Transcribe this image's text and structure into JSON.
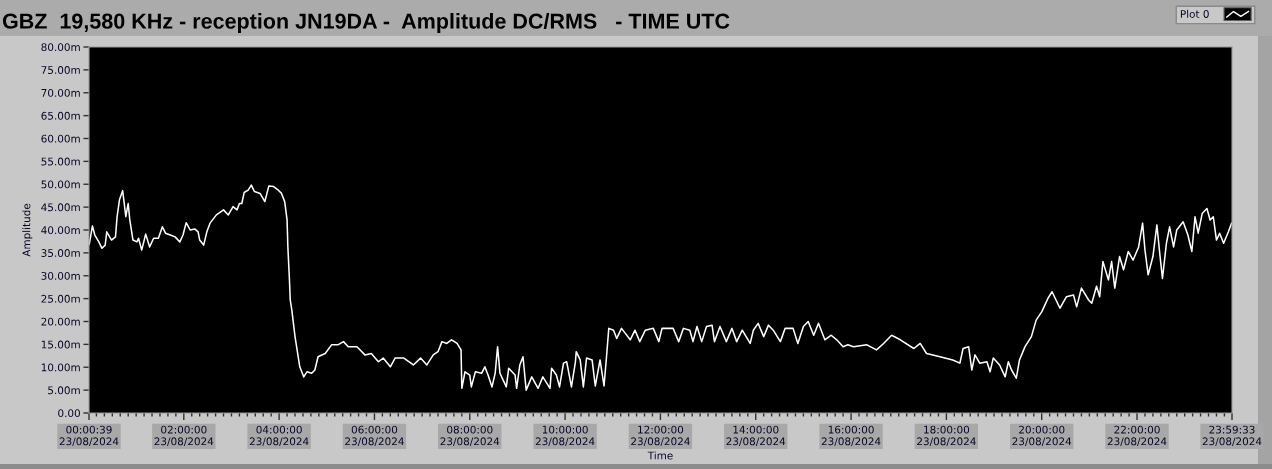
{
  "chart_data": {
    "type": "line",
    "title": "GBZ  19,580 KHz - reception JN19DA -  Amplitude DC/RMS   - TIME UTC",
    "xlabel": "Time",
    "ylabel": "Amplitude",
    "series": [
      {
        "name": "Plot 0",
        "color": "#ffffff",
        "x": [
          "2024-08-23T00:01",
          "2024-08-23T00:05",
          "2024-08-23T00:08",
          "2024-08-23T00:13",
          "2024-08-23T00:17",
          "2024-08-23T00:21",
          "2024-08-23T00:23",
          "2024-08-23T00:29",
          "2024-08-23T00:34",
          "2024-08-23T00:36",
          "2024-08-23T00:39",
          "2024-08-23T00:43",
          "2024-08-23T00:45",
          "2024-08-23T00:47",
          "2024-08-23T00:50",
          "2024-08-23T00:52",
          "2024-08-23T00:56",
          "2024-08-23T01:01",
          "2024-08-23T01:03",
          "2024-08-23T01:07",
          "2024-08-23T01:12",
          "2024-08-23T01:17",
          "2024-08-23T01:22",
          "2024-08-23T01:28",
          "2024-08-23T01:33",
          "2024-08-23T01:37",
          "2024-08-23T01:43",
          "2024-08-23T01:49",
          "2024-08-23T01:55",
          "2024-08-23T01:59",
          "2024-08-23T02:03",
          "2024-08-23T02:08",
          "2024-08-23T02:14",
          "2024-08-23T02:18",
          "2024-08-23T02:20",
          "2024-08-23T02:25",
          "2024-08-23T02:29",
          "2024-08-23T02:33",
          "2024-08-23T02:41",
          "2024-08-23T02:50",
          "2024-08-23T02:56",
          "2024-08-23T03:02",
          "2024-08-23T03:07",
          "2024-08-23T03:10",
          "2024-08-23T03:13",
          "2024-08-23T03:16",
          "2024-08-23T03:21",
          "2024-08-23T03:25",
          "2024-08-23T03:29",
          "2024-08-23T03:36",
          "2024-08-23T03:42",
          "2024-08-23T03:47",
          "2024-08-23T03:53",
          "2024-08-23T03:59",
          "2024-08-23T04:03",
          "2024-08-23T04:07",
          "2024-08-23T04:10",
          "2024-08-23T04:11",
          "2024-08-23T04:13",
          "2024-08-23T04:14",
          "2024-08-23T04:16",
          "2024-08-23T04:20",
          "2024-08-23T04:26",
          "2024-08-23T04:31",
          "2024-08-23T04:35",
          "2024-08-23T04:41",
          "2024-08-23T04:45",
          "2024-08-23T04:49",
          "2024-08-23T04:58",
          "2024-08-23T05:06",
          "2024-08-23T05:14",
          "2024-08-23T05:21",
          "2024-08-23T05:27",
          "2024-08-23T05:38",
          "2024-08-23T05:48",
          "2024-08-23T05:56",
          "2024-08-23T06:05",
          "2024-08-23T06:11",
          "2024-08-23T06:20",
          "2024-08-23T06:26",
          "2024-08-23T06:37",
          "2024-08-23T06:49",
          "2024-08-23T06:58",
          "2024-08-23T07:06",
          "2024-08-23T07:14",
          "2024-08-23T07:20",
          "2024-08-23T07:25",
          "2024-08-23T07:31",
          "2024-08-23T07:37",
          "2024-08-23T07:44",
          "2024-08-23T07:49",
          "2024-08-23T07:50",
          "2024-08-23T07:54",
          "2024-08-23T08:00",
          "2024-08-23T08:02",
          "2024-08-23T08:07",
          "2024-08-23T08:15",
          "2024-08-23T08:19",
          "2024-08-23T08:23",
          "2024-08-23T08:28",
          "2024-08-23T08:32",
          "2024-08-23T08:35",
          "2024-08-23T08:38",
          "2024-08-23T08:46",
          "2024-08-23T08:49",
          "2024-08-23T08:57",
          "2024-08-23T08:59",
          "2024-08-23T09:03",
          "2024-08-23T09:07",
          "2024-08-23T09:11",
          "2024-08-23T09:18",
          "2024-08-23T09:26",
          "2024-08-23T09:32",
          "2024-08-23T09:41",
          "2024-08-23T09:43",
          "2024-08-23T09:49",
          "2024-08-23T09:53",
          "2024-08-23T09:58",
          "2024-08-23T10:02",
          "2024-08-23T10:08",
          "2024-08-23T10:13",
          "2024-08-23T10:14",
          "2024-08-23T10:19",
          "2024-08-23T10:23",
          "2024-08-23T10:27",
          "2024-08-23T10:34",
          "2024-08-23T10:38",
          "2024-08-23T10:44",
          "2024-08-23T10:49",
          "2024-08-23T10:52",
          "2024-08-23T10:55",
          "2024-08-23T11:01",
          "2024-08-23T11:05",
          "2024-08-23T11:11",
          "2024-08-23T11:22",
          "2024-08-23T11:28",
          "2024-08-23T11:34",
          "2024-08-23T11:41",
          "2024-08-23T11:51",
          "2024-08-23T11:58",
          "2024-08-23T12:02",
          "2024-08-23T12:16",
          "2024-08-23T12:23",
          "2024-08-23T12:29",
          "2024-08-23T12:37",
          "2024-08-23T12:41",
          "2024-08-23T12:46",
          "2024-08-23T12:52",
          "2024-08-23T12:58",
          "2024-08-23T13:05",
          "2024-08-23T13:08",
          "2024-08-23T13:15",
          "2024-08-23T13:23",
          "2024-08-23T13:30",
          "2024-08-23T13:36",
          "2024-08-23T13:43",
          "2024-08-23T13:53",
          "2024-08-23T13:57",
          "2024-08-23T14:03",
          "2024-08-23T14:10",
          "2024-08-23T14:16",
          "2024-08-23T14:22",
          "2024-08-23T14:31",
          "2024-08-23T14:37",
          "2024-08-23T14:47",
          "2024-08-23T14:53",
          "2024-08-23T15:00",
          "2024-08-23T15:06",
          "2024-08-23T15:13",
          "2024-08-23T15:19",
          "2024-08-23T15:27",
          "2024-08-23T15:35",
          "2024-08-23T15:42",
          "2024-08-23T15:50",
          "2024-08-23T15:56",
          "2024-08-23T16:03",
          "2024-08-23T16:20",
          "2024-08-23T16:32",
          "2024-08-23T16:41",
          "2024-08-23T16:51",
          "2024-08-23T17:02",
          "2024-08-23T17:19",
          "2024-08-23T17:27",
          "2024-08-23T17:35",
          "2024-08-23T17:52",
          "2024-08-23T18:08",
          "2024-08-23T18:17",
          "2024-08-23T18:21",
          "2024-08-23T18:28",
          "2024-08-23T18:32",
          "2024-08-23T18:36",
          "2024-08-23T18:42",
          "2024-08-23T18:51",
          "2024-08-23T18:55",
          "2024-08-23T18:59",
          "2024-08-23T19:07",
          "2024-08-23T19:14",
          "2024-08-23T19:18",
          "2024-08-23T19:22",
          "2024-08-23T19:28",
          "2024-08-23T19:32",
          "2024-08-23T19:39",
          "2024-08-23T19:47",
          "2024-08-23T19:53",
          "2024-08-23T20:00",
          "2024-08-23T20:08",
          "2024-08-23T20:13",
          "2024-08-23T20:23",
          "2024-08-23T20:31",
          "2024-08-23T20:40",
          "2024-08-23T20:44",
          "2024-08-23T20:50",
          "2024-08-23T20:59",
          "2024-08-23T21:03",
          "2024-08-23T21:09",
          "2024-08-23T21:13",
          "2024-08-23T21:17",
          "2024-08-23T21:24",
          "2024-08-23T21:28",
          "2024-08-23T21:32",
          "2024-08-23T21:38",
          "2024-08-23T21:43",
          "2024-08-23T21:49",
          "2024-08-23T21:55",
          "2024-08-23T22:02",
          "2024-08-23T22:07",
          "2024-08-23T22:10",
          "2024-08-23T22:14",
          "2024-08-23T22:20",
          "2024-08-23T22:25",
          "2024-08-23T22:29",
          "2024-08-23T22:32",
          "2024-08-23T22:37",
          "2024-08-23T22:41",
          "2024-08-23T22:46",
          "2024-08-23T22:50",
          "2024-08-23T22:58",
          "2024-08-23T23:04",
          "2024-08-23T23:09",
          "2024-08-23T23:13",
          "2024-08-23T23:17",
          "2024-08-23T23:22",
          "2024-08-23T23:28",
          "2024-08-23T23:32",
          "2024-08-23T23:36",
          "2024-08-23T23:40",
          "2024-08-23T23:44",
          "2024-08-23T23:49",
          "2024-08-23T23:55",
          "2024-08-23T23:59"
        ],
        "values": [
          36.9,
          40.9,
          38.9,
          37.4,
          36.0,
          36.7,
          39.6,
          37.8,
          38.5,
          42.9,
          46.6,
          48.6,
          45.8,
          42.9,
          45.8,
          42.2,
          37.8,
          37.4,
          38.2,
          35.6,
          39.1,
          36.3,
          38.2,
          38.2,
          40.7,
          39.3,
          38.9,
          38.5,
          37.4,
          38.9,
          41.6,
          40.0,
          40.2,
          39.6,
          37.8,
          36.7,
          39.6,
          41.5,
          43.3,
          44.4,
          43.3,
          45.1,
          44.4,
          45.8,
          45.8,
          48.2,
          48.7,
          49.8,
          48.4,
          48.0,
          46.2,
          49.6,
          49.5,
          48.7,
          48.0,
          46.2,
          42.2,
          36.3,
          29.0,
          24.7,
          22.5,
          16.7,
          10.1,
          7.9,
          9.0,
          8.7,
          9.4,
          12.3,
          13.0,
          14.9,
          14.9,
          15.6,
          14.5,
          14.5,
          12.7,
          13.0,
          11.2,
          12.0,
          10.1,
          12.0,
          12.0,
          10.5,
          12.0,
          10.5,
          12.7,
          13.4,
          15.6,
          15.2,
          16.0,
          15.2,
          13.8,
          5.4,
          9.0,
          8.3,
          5.7,
          9.0,
          8.7,
          10.1,
          8.3,
          5.7,
          8.7,
          14.5,
          8.7,
          5.7,
          9.8,
          8.3,
          5.4,
          10.5,
          12.3,
          5.0,
          7.9,
          5.4,
          7.9,
          5.4,
          9.8,
          8.3,
          5.7,
          10.9,
          11.2,
          5.7,
          11.2,
          13.4,
          11.6,
          5.7,
          12.0,
          11.6,
          5.9,
          11.6,
          5.9,
          12.0,
          18.5,
          18.1,
          16.3,
          18.5,
          16.0,
          18.1,
          15.6,
          18.1,
          18.5,
          15.6,
          18.5,
          18.5,
          15.6,
          18.5,
          18.1,
          15.6,
          18.9,
          15.6,
          18.9,
          19.2,
          15.6,
          18.9,
          15.6,
          18.5,
          15.6,
          18.1,
          15.2,
          18.1,
          19.6,
          16.7,
          19.2,
          18.1,
          15.6,
          18.5,
          18.5,
          15.2,
          18.9,
          20.0,
          17.0,
          19.6,
          16.0,
          17.0,
          16.0,
          14.5,
          14.9,
          14.5,
          14.9,
          13.8,
          15.2,
          17.0,
          16.0,
          14.1,
          15.2,
          13.0,
          12.3,
          11.6,
          10.9,
          14.1,
          14.5,
          9.4,
          12.7,
          10.9,
          11.2,
          9.0,
          12.0,
          10.5,
          7.9,
          11.2,
          9.4,
          7.6,
          11.6,
          14.5,
          16.7,
          20.3,
          22.1,
          25.1,
          26.5,
          22.9,
          25.4,
          25.8,
          23.2,
          27.3,
          24.7,
          24.0,
          27.7,
          25.4,
          33.1,
          29.1,
          33.1,
          27.3,
          34.2,
          31.3,
          35.3,
          33.4,
          36.3,
          41.5,
          35.6,
          30.2,
          34.2,
          41.1,
          34.2,
          29.4,
          37.1,
          40.7,
          36.3,
          40.0,
          41.8,
          38.9,
          35.3,
          42.9,
          39.3,
          43.6,
          44.7,
          42.2,
          42.9,
          37.8,
          39.3,
          37.1,
          39.6,
          41.5
        ]
      }
    ],
    "xlim": [
      "2024-08-23T00:00:39",
      "2024-08-23T23:59:33"
    ],
    "xticks": [
      {
        "value": "2024-08-23T00:00:39",
        "label": "00:00:39\n23/08/2024"
      },
      {
        "value": "2024-08-23T02:00",
        "label": "02:00:00\n23/08/2024"
      },
      {
        "value": "2024-08-23T04:00",
        "label": "04:00:00\n23/08/2024"
      },
      {
        "value": "2024-08-23T06:00",
        "label": "06:00:00\n23/08/2024"
      },
      {
        "value": "2024-08-23T08:00",
        "label": "08:00:00\n23/08/2024"
      },
      {
        "value": "2024-08-23T10:00",
        "label": "10:00:00\n23/08/2024"
      },
      {
        "value": "2024-08-23T12:00",
        "label": "12:00:00\n23/08/2024"
      },
      {
        "value": "2024-08-23T14:00",
        "label": "14:00:00\n23/08/2024"
      },
      {
        "value": "2024-08-23T16:00",
        "label": "16:00:00\n23/08/2024"
      },
      {
        "value": "2024-08-23T18:00",
        "label": "18:00:00\n23/08/2024"
      },
      {
        "value": "2024-08-23T20:00",
        "label": "20:00:00\n23/08/2024"
      },
      {
        "value": "2024-08-23T22:00",
        "label": "22:00:00\n23/08/2024"
      },
      {
        "value": "2024-08-23T23:59:33",
        "label": "23:59:33\n23/08/2024"
      }
    ],
    "ylim": [
      0,
      80
    ],
    "yticks": [
      {
        "value": 0,
        "label": "0.00"
      },
      {
        "value": 5,
        "label": "5.00m"
      },
      {
        "value": 10,
        "label": "10.00m"
      },
      {
        "value": 15,
        "label": "15.00m"
      },
      {
        "value": 20,
        "label": "20.00m"
      },
      {
        "value": 25,
        "label": "25.00m"
      },
      {
        "value": 30,
        "label": "30.00m"
      },
      {
        "value": 35,
        "label": "35.00m"
      },
      {
        "value": 40,
        "label": "40.00m"
      },
      {
        "value": 45,
        "label": "45.00m"
      },
      {
        "value": 50,
        "label": "50.00m"
      },
      {
        "value": 55,
        "label": "55.00m"
      },
      {
        "value": 60,
        "label": "60.00m"
      },
      {
        "value": 65,
        "label": "65.00m"
      },
      {
        "value": 70,
        "label": "70.00m"
      },
      {
        "value": 75,
        "label": "75.00m"
      },
      {
        "value": 80,
        "label": "80.00m"
      }
    ],
    "legend": "top right",
    "grid": false,
    "line_style": "solid",
    "marker": "none"
  }
}
